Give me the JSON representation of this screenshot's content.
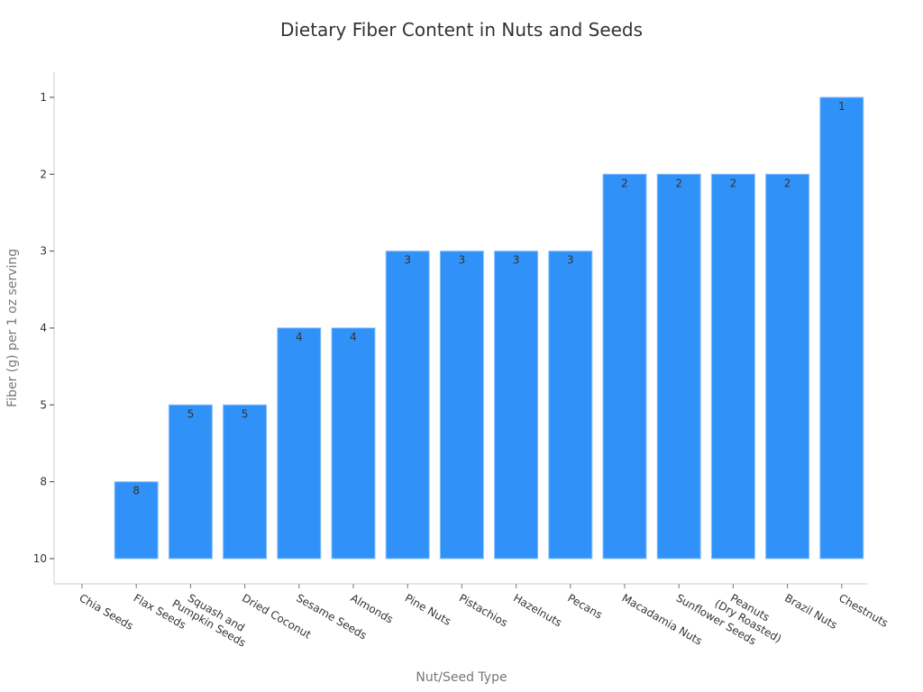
{
  "chart_data": {
    "type": "bar",
    "title": "Dietary Fiber Content in Nuts and Seeds",
    "xlabel": "Nut/Seed Type",
    "ylabel": "Fiber (g) per 1 oz serving",
    "y_axis_kind": "categorical",
    "y_ticks_top_to_bottom": [
      "1",
      "2",
      "3",
      "4",
      "5",
      "8",
      "10"
    ],
    "categories": [
      "Chia Seeds",
      "Flax Seeds",
      "Squash and\nPumpkin Seeds",
      "Dried Coconut",
      "Sesame Seeds",
      "Almonds",
      "Pine Nuts",
      "Pistachios",
      "Hazelnuts",
      "Pecans",
      "Macadamia Nuts",
      "Sunflower Seeds",
      "Peanuts\n(Dry Roasted)",
      "Brazil Nuts",
      "Chestnuts"
    ],
    "values": [
      10,
      8,
      5,
      5,
      4,
      4,
      3,
      3,
      3,
      3,
      2,
      2,
      2,
      2,
      1
    ],
    "bar_labels": [
      "",
      "8",
      "5",
      "5",
      "4",
      "4",
      "3",
      "3",
      "3",
      "3",
      "2",
      "2",
      "2",
      "2",
      "1"
    ],
    "bar_color": "#3092f8",
    "grid": false,
    "legend": null
  }
}
